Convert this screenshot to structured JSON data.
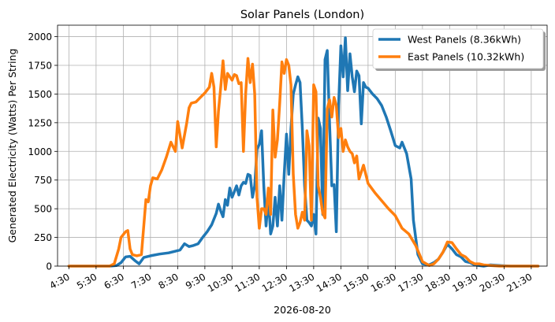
{
  "chart_data": {
    "type": "line",
    "title": "Solar Panels (London)",
    "xlabel": "2026-08-20",
    "ylabel": "Generated Electricity (Watts) Per String",
    "ylim": [
      0,
      2100
    ],
    "yticks": [
      0,
      250,
      500,
      750,
      1000,
      1250,
      1500,
      1750,
      2000
    ],
    "xlim": [
      "04:05",
      "22:05"
    ],
    "xticks": [
      "4:30",
      "5:30",
      "6:30",
      "7:30",
      "8:30",
      "9:30",
      "10:30",
      "11:30",
      "12:30",
      "13:30",
      "14:30",
      "15:30",
      "16:30",
      "17:30",
      "18:30",
      "19:30",
      "20:30",
      "21:30"
    ],
    "grid": true,
    "legend_position": "top-right",
    "series": [
      {
        "name": "West Panels (8.36kWh)",
        "color": "#1f77b4",
        "points": [
          [
            "04:30",
            0
          ],
          [
            "05:00",
            0
          ],
          [
            "05:30",
            0
          ],
          [
            "06:00",
            0
          ],
          [
            "06:15",
            5
          ],
          [
            "06:25",
            30
          ],
          [
            "06:35",
            80
          ],
          [
            "06:45",
            85
          ],
          [
            "06:55",
            50
          ],
          [
            "07:05",
            20
          ],
          [
            "07:15",
            75
          ],
          [
            "07:30",
            90
          ],
          [
            "07:50",
            105
          ],
          [
            "08:10",
            115
          ],
          [
            "08:25",
            130
          ],
          [
            "08:35",
            140
          ],
          [
            "08:45",
            195
          ],
          [
            "08:55",
            170
          ],
          [
            "09:05",
            180
          ],
          [
            "09:15",
            195
          ],
          [
            "09:25",
            250
          ],
          [
            "09:35",
            300
          ],
          [
            "09:45",
            360
          ],
          [
            "09:55",
            460
          ],
          [
            "10:00",
            540
          ],
          [
            "10:05",
            480
          ],
          [
            "10:10",
            430
          ],
          [
            "10:15",
            580
          ],
          [
            "10:20",
            530
          ],
          [
            "10:25",
            680
          ],
          [
            "10:30",
            600
          ],
          [
            "10:35",
            650
          ],
          [
            "10:40",
            700
          ],
          [
            "10:45",
            620
          ],
          [
            "10:50",
            700
          ],
          [
            "10:55",
            730
          ],
          [
            "11:00",
            720
          ],
          [
            "11:05",
            800
          ],
          [
            "11:10",
            790
          ],
          [
            "11:15",
            600
          ],
          [
            "11:20",
            700
          ],
          [
            "11:25",
            1020
          ],
          [
            "11:30",
            1060
          ],
          [
            "11:35",
            1180
          ],
          [
            "11:40",
            700
          ],
          [
            "11:45",
            350
          ],
          [
            "11:50",
            600
          ],
          [
            "11:55",
            280
          ],
          [
            "12:00",
            350
          ],
          [
            "12:05",
            600
          ],
          [
            "12:10",
            350
          ],
          [
            "12:15",
            700
          ],
          [
            "12:20",
            400
          ],
          [
            "12:25",
            800
          ],
          [
            "12:30",
            1150
          ],
          [
            "12:35",
            800
          ],
          [
            "12:40",
            1200
          ],
          [
            "12:45",
            1500
          ],
          [
            "12:50",
            1580
          ],
          [
            "12:55",
            1650
          ],
          [
            "13:00",
            1600
          ],
          [
            "13:05",
            1200
          ],
          [
            "13:10",
            700
          ],
          [
            "13:15",
            400
          ],
          [
            "13:20",
            380
          ],
          [
            "13:25",
            350
          ],
          [
            "13:30",
            450
          ],
          [
            "13:35",
            280
          ],
          [
            "13:40",
            1290
          ],
          [
            "13:45",
            1200
          ],
          [
            "13:50",
            450
          ],
          [
            "13:55",
            1800
          ],
          [
            "14:00",
            1880
          ],
          [
            "14:05",
            1250
          ],
          [
            "14:10",
            700
          ],
          [
            "14:15",
            710
          ],
          [
            "14:20",
            300
          ],
          [
            "14:25",
            1400
          ],
          [
            "14:30",
            1920
          ],
          [
            "14:35",
            1650
          ],
          [
            "14:40",
            1990
          ],
          [
            "14:45",
            1530
          ],
          [
            "14:50",
            1850
          ],
          [
            "14:55",
            1650
          ],
          [
            "15:00",
            1520
          ],
          [
            "15:05",
            1700
          ],
          [
            "15:10",
            1660
          ],
          [
            "15:15",
            1240
          ],
          [
            "15:20",
            1600
          ],
          [
            "15:25",
            1560
          ],
          [
            "15:30",
            1550
          ],
          [
            "15:40",
            1500
          ],
          [
            "15:50",
            1460
          ],
          [
            "16:00",
            1400
          ],
          [
            "16:10",
            1300
          ],
          [
            "16:20",
            1180
          ],
          [
            "16:30",
            1050
          ],
          [
            "16:40",
            1030
          ],
          [
            "16:45",
            1080
          ],
          [
            "16:55",
            980
          ],
          [
            "17:05",
            760
          ],
          [
            "17:10",
            400
          ],
          [
            "17:20",
            100
          ],
          [
            "17:30",
            20
          ],
          [
            "17:45",
            10
          ],
          [
            "17:55",
            30
          ],
          [
            "18:05",
            60
          ],
          [
            "18:15",
            120
          ],
          [
            "18:25",
            190
          ],
          [
            "18:35",
            150
          ],
          [
            "18:45",
            100
          ],
          [
            "18:55",
            80
          ],
          [
            "19:05",
            40
          ],
          [
            "19:15",
            30
          ],
          [
            "19:25",
            10
          ],
          [
            "19:35",
            5
          ],
          [
            "19:45",
            0
          ],
          [
            "20:00",
            10
          ],
          [
            "20:20",
            5
          ],
          [
            "20:45",
            0
          ],
          [
            "21:15",
            0
          ],
          [
            "21:45",
            0
          ]
        ]
      },
      {
        "name": "East Panels (10.32kWh)",
        "color": "#ff7f0e",
        "points": [
          [
            "04:30",
            0
          ],
          [
            "05:00",
            0
          ],
          [
            "05:30",
            0
          ],
          [
            "06:00",
            0
          ],
          [
            "06:10",
            20
          ],
          [
            "06:20",
            150
          ],
          [
            "06:25",
            250
          ],
          [
            "06:35",
            300
          ],
          [
            "06:40",
            310
          ],
          [
            "06:45",
            150
          ],
          [
            "06:50",
            100
          ],
          [
            "07:00",
            90
          ],
          [
            "07:10",
            100
          ],
          [
            "07:20",
            580
          ],
          [
            "07:25",
            560
          ],
          [
            "07:30",
            700
          ],
          [
            "07:35",
            770
          ],
          [
            "07:45",
            760
          ],
          [
            "07:55",
            840
          ],
          [
            "08:05",
            950
          ],
          [
            "08:15",
            1080
          ],
          [
            "08:25",
            1000
          ],
          [
            "08:30",
            1260
          ],
          [
            "08:40",
            1030
          ],
          [
            "08:50",
            1250
          ],
          [
            "08:55",
            1380
          ],
          [
            "09:00",
            1420
          ],
          [
            "09:10",
            1430
          ],
          [
            "09:20",
            1470
          ],
          [
            "09:30",
            1510
          ],
          [
            "09:40",
            1560
          ],
          [
            "09:45",
            1680
          ],
          [
            "09:50",
            1560
          ],
          [
            "09:55",
            1040
          ],
          [
            "10:00",
            1350
          ],
          [
            "10:05",
            1560
          ],
          [
            "10:10",
            1790
          ],
          [
            "10:15",
            1540
          ],
          [
            "10:20",
            1680
          ],
          [
            "10:30",
            1620
          ],
          [
            "10:35",
            1670
          ],
          [
            "10:40",
            1660
          ],
          [
            "10:45",
            1590
          ],
          [
            "10:50",
            1600
          ],
          [
            "10:55",
            1000
          ],
          [
            "11:00",
            1500
          ],
          [
            "11:05",
            1810
          ],
          [
            "11:10",
            1600
          ],
          [
            "11:15",
            1760
          ],
          [
            "11:20",
            1500
          ],
          [
            "11:25",
            600
          ],
          [
            "11:30",
            330
          ],
          [
            "11:35",
            500
          ],
          [
            "11:40",
            500
          ],
          [
            "11:45",
            450
          ],
          [
            "11:50",
            680
          ],
          [
            "11:55",
            450
          ],
          [
            "12:00",
            1360
          ],
          [
            "12:05",
            950
          ],
          [
            "12:10",
            1100
          ],
          [
            "12:15",
            1420
          ],
          [
            "12:20",
            1780
          ],
          [
            "12:25",
            1680
          ],
          [
            "12:30",
            1800
          ],
          [
            "12:35",
            1750
          ],
          [
            "12:40",
            1580
          ],
          [
            "12:45",
            800
          ],
          [
            "12:50",
            450
          ],
          [
            "12:55",
            330
          ],
          [
            "13:00",
            380
          ],
          [
            "13:05",
            470
          ],
          [
            "13:10",
            400
          ],
          [
            "13:15",
            1180
          ],
          [
            "13:20",
            1050
          ],
          [
            "13:25",
            400
          ],
          [
            "13:30",
            1580
          ],
          [
            "13:35",
            1520
          ],
          [
            "13:40",
            700
          ],
          [
            "13:45",
            600
          ],
          [
            "13:50",
            460
          ],
          [
            "13:55",
            420
          ],
          [
            "14:00",
            1370
          ],
          [
            "14:05",
            1450
          ],
          [
            "14:10",
            1300
          ],
          [
            "14:15",
            1470
          ],
          [
            "14:20",
            1400
          ],
          [
            "14:25",
            1120
          ],
          [
            "14:30",
            1200
          ],
          [
            "14:35",
            1000
          ],
          [
            "14:40",
            1100
          ],
          [
            "14:45",
            1040
          ],
          [
            "14:50",
            1000
          ],
          [
            "14:55",
            980
          ],
          [
            "15:00",
            900
          ],
          [
            "15:05",
            960
          ],
          [
            "15:10",
            760
          ],
          [
            "15:20",
            880
          ],
          [
            "15:30",
            720
          ],
          [
            "15:45",
            640
          ],
          [
            "16:00",
            570
          ],
          [
            "16:15",
            500
          ],
          [
            "16:30",
            440
          ],
          [
            "16:45",
            330
          ],
          [
            "17:00",
            280
          ],
          [
            "17:15",
            180
          ],
          [
            "17:30",
            40
          ],
          [
            "17:45",
            5
          ],
          [
            "17:55",
            20
          ],
          [
            "18:05",
            60
          ],
          [
            "18:15",
            120
          ],
          [
            "18:25",
            210
          ],
          [
            "18:35",
            205
          ],
          [
            "18:45",
            150
          ],
          [
            "18:55",
            100
          ],
          [
            "19:05",
            80
          ],
          [
            "19:15",
            40
          ],
          [
            "19:25",
            20
          ],
          [
            "19:35",
            20
          ],
          [
            "19:45",
            10
          ],
          [
            "20:00",
            5
          ],
          [
            "20:20",
            0
          ],
          [
            "20:45",
            0
          ],
          [
            "21:15",
            0
          ],
          [
            "21:45",
            0
          ]
        ]
      }
    ]
  }
}
